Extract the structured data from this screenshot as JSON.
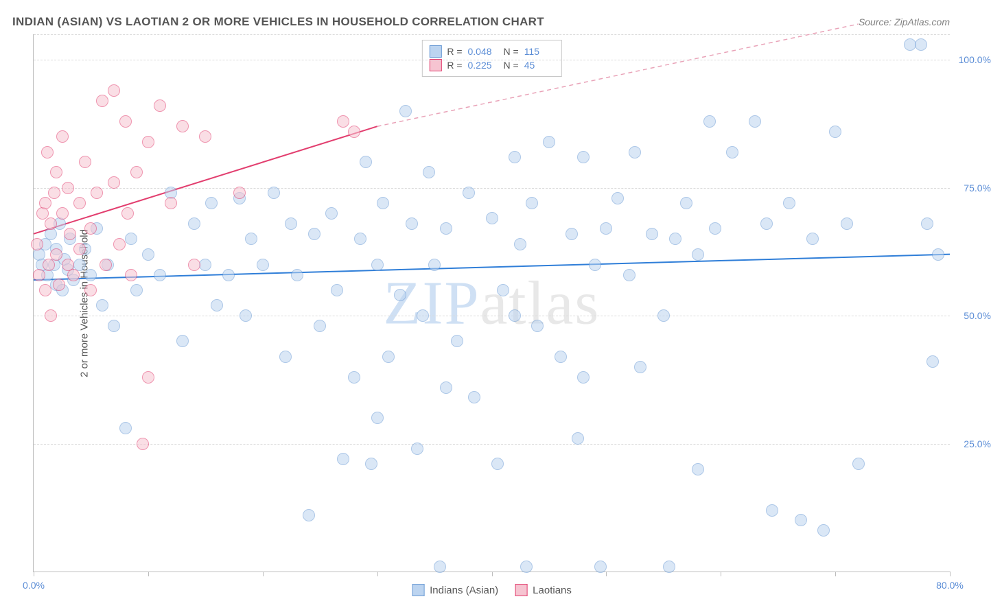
{
  "title": "INDIAN (ASIAN) VS LAOTIAN 2 OR MORE VEHICLES IN HOUSEHOLD CORRELATION CHART",
  "source_prefix": "Source: ",
  "source": "ZipAtlas.com",
  "watermark": {
    "part1": "ZIP",
    "part2": "atlas"
  },
  "chart": {
    "type": "scatter",
    "background_color": "#ffffff",
    "grid_color": "#d9d9d9",
    "axis_color": "#bdbdbd",
    "ylabel": "2 or more Vehicles in Household",
    "ylabel_color": "#555555",
    "ylabel_fontsize": 15,
    "tick_label_color": "#5b8dd6",
    "tick_label_fontsize": 14,
    "xlim": [
      0,
      80
    ],
    "ylim": [
      0,
      105
    ],
    "x_ticks": [
      0,
      10,
      20,
      30,
      40,
      50,
      60,
      70,
      80
    ],
    "x_tick_labels": {
      "0": "0.0%",
      "80": "80.0%"
    },
    "y_gridlines": [
      25,
      50,
      75,
      100,
      105
    ],
    "y_tick_labels": {
      "25": "25.0%",
      "50": "50.0%",
      "75": "75.0%",
      "100": "100.0%"
    },
    "marker_radius": 9,
    "marker_opacity": 0.55,
    "series": [
      {
        "name": "Indians (Asian)",
        "fill": "#bcd4f0",
        "stroke": "#6a9ad4",
        "r_value": "0.048",
        "n_value": "115",
        "trend": {
          "x1": 0,
          "y1": 57,
          "x2": 80,
          "y2": 62,
          "color": "#2f7ed8",
          "width": 2,
          "dash": "none"
        },
        "points": [
          [
            0.5,
            62
          ],
          [
            0.7,
            60
          ],
          [
            1,
            64
          ],
          [
            1.2,
            58
          ],
          [
            1.5,
            66
          ],
          [
            1.8,
            60
          ],
          [
            2,
            56
          ],
          [
            2,
            63
          ],
          [
            2.3,
            68
          ],
          [
            2.5,
            55
          ],
          [
            2.7,
            61
          ],
          [
            3,
            59
          ],
          [
            3.2,
            65
          ],
          [
            3.5,
            57
          ],
          [
            4,
            60
          ],
          [
            4.5,
            63
          ],
          [
            5,
            58
          ],
          [
            5.5,
            67
          ],
          [
            6,
            52
          ],
          [
            6.5,
            60
          ],
          [
            7,
            48
          ],
          [
            8,
            28
          ],
          [
            8.5,
            65
          ],
          [
            9,
            55
          ],
          [
            10,
            62
          ],
          [
            11,
            58
          ],
          [
            12,
            74
          ],
          [
            13,
            45
          ],
          [
            14,
            68
          ],
          [
            15,
            60
          ],
          [
            15.5,
            72
          ],
          [
            16,
            52
          ],
          [
            17,
            58
          ],
          [
            18,
            73
          ],
          [
            18.5,
            50
          ],
          [
            19,
            65
          ],
          [
            20,
            60
          ],
          [
            21,
            74
          ],
          [
            22,
            42
          ],
          [
            22.5,
            68
          ],
          [
            23,
            58
          ],
          [
            24,
            11
          ],
          [
            24.5,
            66
          ],
          [
            25,
            48
          ],
          [
            26,
            70
          ],
          [
            26.5,
            55
          ],
          [
            27,
            22
          ],
          [
            28,
            38
          ],
          [
            28.5,
            65
          ],
          [
            29,
            80
          ],
          [
            29.5,
            21
          ],
          [
            30,
            30
          ],
          [
            30.5,
            72
          ],
          [
            31,
            42
          ],
          [
            32,
            54
          ],
          [
            32.5,
            90
          ],
          [
            33,
            68
          ],
          [
            33.5,
            24
          ],
          [
            34,
            50
          ],
          [
            34.5,
            78
          ],
          [
            35,
            60
          ],
          [
            35.5,
            1
          ],
          [
            36,
            67
          ],
          [
            37,
            45
          ],
          [
            38,
            74
          ],
          [
            38.5,
            34
          ],
          [
            40,
            69
          ],
          [
            40.5,
            21
          ],
          [
            41,
            55
          ],
          [
            42,
            81
          ],
          [
            42.5,
            64
          ],
          [
            43,
            1
          ],
          [
            43.5,
            72
          ],
          [
            44,
            48
          ],
          [
            45,
            84
          ],
          [
            46,
            42
          ],
          [
            47,
            66
          ],
          [
            47.5,
            26
          ],
          [
            48,
            81
          ],
          [
            49,
            60
          ],
          [
            49.5,
            1
          ],
          [
            50,
            67
          ],
          [
            51,
            73
          ],
          [
            52,
            58
          ],
          [
            52.5,
            82
          ],
          [
            53,
            40
          ],
          [
            54,
            66
          ],
          [
            55,
            50
          ],
          [
            55.5,
            1
          ],
          [
            56,
            65
          ],
          [
            57,
            72
          ],
          [
            58,
            20
          ],
          [
            59,
            88
          ],
          [
            59.5,
            67
          ],
          [
            61,
            82
          ],
          [
            63,
            88
          ],
          [
            64,
            68
          ],
          [
            64.5,
            12
          ],
          [
            66,
            72
          ],
          [
            67,
            10
          ],
          [
            68,
            65
          ],
          [
            69,
            8
          ],
          [
            70,
            86
          ],
          [
            71,
            68
          ],
          [
            72,
            21
          ],
          [
            76.5,
            103
          ],
          [
            77.5,
            103
          ],
          [
            78,
            68
          ],
          [
            78.5,
            41
          ],
          [
            79,
            62
          ],
          [
            58,
            62
          ],
          [
            48,
            38
          ],
          [
            42,
            50
          ],
          [
            36,
            36
          ],
          [
            30,
            60
          ]
        ]
      },
      {
        "name": "Laotians",
        "fill": "#f6c4d1",
        "stroke": "#e23d6e",
        "r_value": "0.225",
        "n_value": "45",
        "trend_solid": {
          "x1": 0,
          "y1": 66,
          "x2": 30,
          "y2": 87,
          "color": "#e23d6e",
          "width": 2
        },
        "trend_dash": {
          "x1": 30,
          "y1": 87,
          "x2": 72,
          "y2": 107,
          "color": "#e9a3b8",
          "width": 1.5
        },
        "points": [
          [
            0.3,
            64
          ],
          [
            0.5,
            58
          ],
          [
            0.8,
            70
          ],
          [
            1,
            55
          ],
          [
            1,
            72
          ],
          [
            1.2,
            82
          ],
          [
            1.3,
            60
          ],
          [
            1.5,
            68
          ],
          [
            1.5,
            50
          ],
          [
            1.8,
            74
          ],
          [
            2,
            62
          ],
          [
            2,
            78
          ],
          [
            2.2,
            56
          ],
          [
            2.5,
            70
          ],
          [
            2.5,
            85
          ],
          [
            3,
            60
          ],
          [
            3,
            75
          ],
          [
            3.2,
            66
          ],
          [
            3.5,
            58
          ],
          [
            4,
            72
          ],
          [
            4,
            63
          ],
          [
            4.5,
            80
          ],
          [
            5,
            55
          ],
          [
            5,
            67
          ],
          [
            5.5,
            74
          ],
          [
            6,
            92
          ],
          [
            6.3,
            60
          ],
          [
            7,
            94
          ],
          [
            7,
            76
          ],
          [
            7.5,
            64
          ],
          [
            8,
            88
          ],
          [
            8.2,
            70
          ],
          [
            8.5,
            58
          ],
          [
            9,
            78
          ],
          [
            9.5,
            25
          ],
          [
            10,
            84
          ],
          [
            10,
            38
          ],
          [
            11,
            91
          ],
          [
            12,
            72
          ],
          [
            13,
            87
          ],
          [
            14,
            60
          ],
          [
            15,
            85
          ],
          [
            18,
            74
          ],
          [
            27,
            88
          ],
          [
            28,
            86
          ]
        ]
      }
    ]
  },
  "legend_top": {
    "r_label": "R =",
    "n_label": "N ="
  },
  "legend_bottom": {
    "items": [
      "Indians (Asian)",
      "Laotians"
    ]
  }
}
